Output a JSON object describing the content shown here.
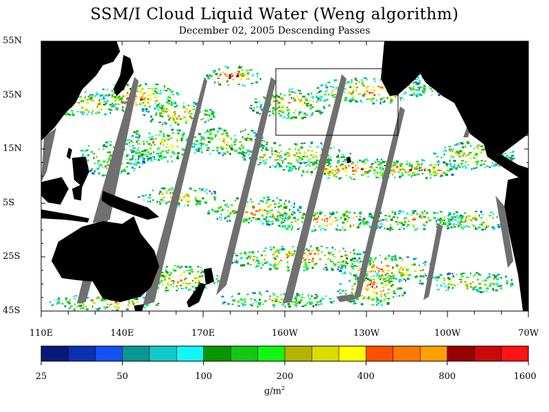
{
  "title": "SSM/I Cloud Liquid Water (Weng algorithm)",
  "subtitle": "December 02, 2005  Descending Passes",
  "lat_labels": [
    "55N",
    "35N",
    "15N",
    "5S",
    "25S",
    "45S"
  ],
  "lon_labels": [
    "110E",
    "140E",
    "170E",
    "160W",
    "130W",
    "100W",
    "70W"
  ],
  "colorbar": {
    "labels": [
      "25",
      "50",
      "100",
      "200",
      "400",
      "800",
      "1600"
    ],
    "unit": "g/m",
    "unit_sup": "2",
    "colors": [
      "#071a78",
      "#0a30b4",
      "#1452f5",
      "#0a9696",
      "#14c8c8",
      "#14f5f5",
      "#0a9600",
      "#14c814",
      "#14f514",
      "#b4b400",
      "#dcdc00",
      "#ffff00",
      "#ff5000",
      "#ff7800",
      "#ffa000",
      "#960000",
      "#c80a0a",
      "#ff1414"
    ]
  },
  "colors": {
    "land": "#000000",
    "no_data_swath_gap": "#707070",
    "background": "#ffffff"
  }
}
